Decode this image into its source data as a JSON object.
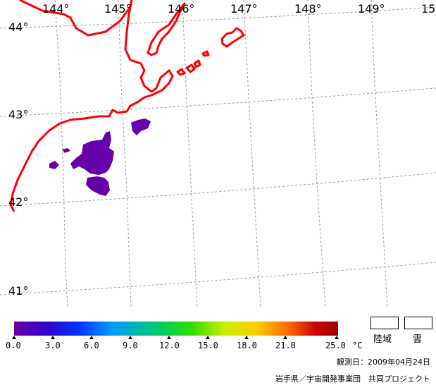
{
  "map": {
    "longitude_labels": [
      "144°",
      "145°",
      "146°",
      "147°",
      "148°",
      "149°",
      "15"
    ],
    "latitude_labels": [
      "44°",
      "43°",
      "42°",
      "41°"
    ],
    "colors": {
      "coastline": "#ff0000",
      "grid": "#999999",
      "sst_patch": "#6600aa"
    }
  },
  "colorbar": {
    "ticks": [
      "0.0",
      "3.0",
      "6.0",
      "9.0",
      "12.0",
      "15.0",
      "18.0",
      "21.0",
      "25.0"
    ],
    "unit": "°C",
    "colors": [
      "#6a00a8",
      "#3300cc",
      "#0033ff",
      "#0099ff",
      "#00cc66",
      "#33dd00",
      "#ccee00",
      "#ffcc00",
      "#ff6600",
      "#cc0000",
      "#990000"
    ]
  },
  "legend": {
    "land_label": "陸域",
    "cloud_label": "雲"
  },
  "footer": {
    "observation_date": "観測日：2009年04月24日",
    "credit": "岩手県／宇宙開発事業団　共同プロジェクト"
  }
}
